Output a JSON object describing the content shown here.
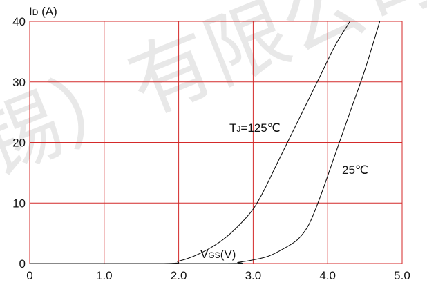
{
  "chart_data": {
    "type": "line",
    "title": "",
    "xlabel": {
      "main": "V",
      "sub": "GS",
      "rest": "(V)"
    },
    "ylabel": {
      "main": "I",
      "sub": "D",
      "rest": " (A)"
    },
    "xlim": [
      0,
      5.0
    ],
    "ylim": [
      0,
      40
    ],
    "xticks": [
      "0",
      "1.0",
      "2.0",
      "3.0",
      "4.0",
      "5.0"
    ],
    "yticks": [
      "0",
      "10",
      "20",
      "30",
      "40"
    ],
    "grid": true,
    "series": [
      {
        "name": {
          "main": "T",
          "sub": "J",
          "rest": "=125℃"
        },
        "x": [
          0,
          1.8,
          2.0,
          2.2,
          2.4,
          2.6,
          2.8,
          3.0,
          3.15,
          3.3,
          3.5,
          3.7,
          3.9,
          4.1,
          4.3
        ],
        "y": [
          0,
          0,
          0.4,
          1.2,
          2.4,
          4.0,
          6.2,
          9.0,
          12.2,
          16.0,
          21.0,
          26.0,
          31.0,
          36.0,
          40.0
        ]
      },
      {
        "name": {
          "main": "",
          "sub": "",
          "rest": "25℃"
        },
        "x": [
          0,
          2.6,
          2.8,
          3.0,
          3.2,
          3.4,
          3.6,
          3.75,
          3.9,
          4.1,
          4.3,
          4.5,
          4.7
        ],
        "y": [
          0,
          0,
          0.2,
          0.6,
          1.2,
          2.4,
          4.0,
          6.5,
          11.0,
          18.0,
          25.0,
          32.0,
          40.0
        ]
      }
    ]
  },
  "watermark": "锡）有限公司"
}
